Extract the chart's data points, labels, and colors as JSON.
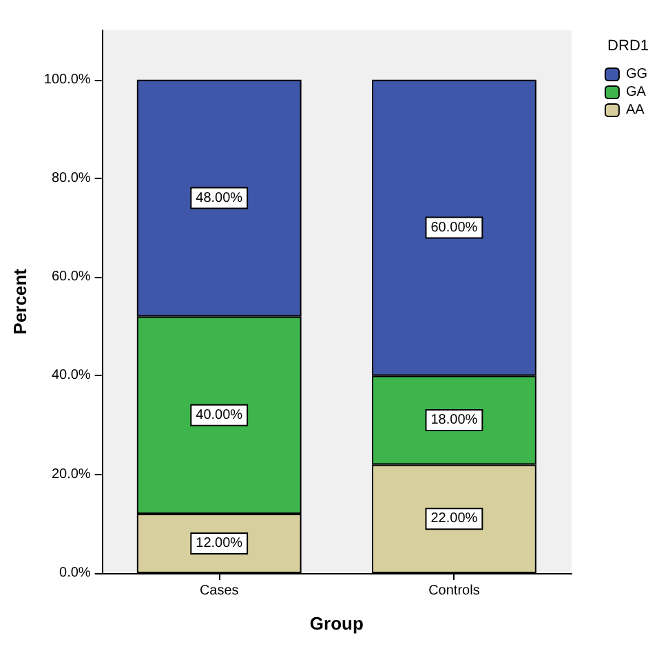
{
  "chart_data": {
    "type": "bar",
    "stacked": true,
    "xlabel": "Group",
    "ylabel": "Percent",
    "legend_title": "DRD1",
    "legend": "top right",
    "grid": false,
    "categories": [
      "Cases",
      "Controls"
    ],
    "ylim": [
      0,
      110
    ],
    "yticks": [
      {
        "value": 0,
        "label": "0.0%"
      },
      {
        "value": 20,
        "label": "20.0%"
      },
      {
        "value": 40,
        "label": "40.0%"
      },
      {
        "value": 60,
        "label": "60.0%"
      },
      {
        "value": 80,
        "label": "80.0%"
      },
      {
        "value": 100,
        "label": "100.0%"
      }
    ],
    "series": [
      {
        "name": "AA",
        "color": "#d8cf9f",
        "values": [
          12,
          22
        ],
        "value_labels": [
          "12.00%",
          "22.00%"
        ]
      },
      {
        "name": "GA",
        "color": "#3db54b",
        "values": [
          40,
          18
        ],
        "value_labels": [
          "40.00%",
          "18.00%"
        ]
      },
      {
        "name": "GG",
        "color": "#3f57a8",
        "values": [
          48,
          60
        ],
        "value_labels": [
          "48.00%",
          "60.00%"
        ]
      }
    ]
  }
}
